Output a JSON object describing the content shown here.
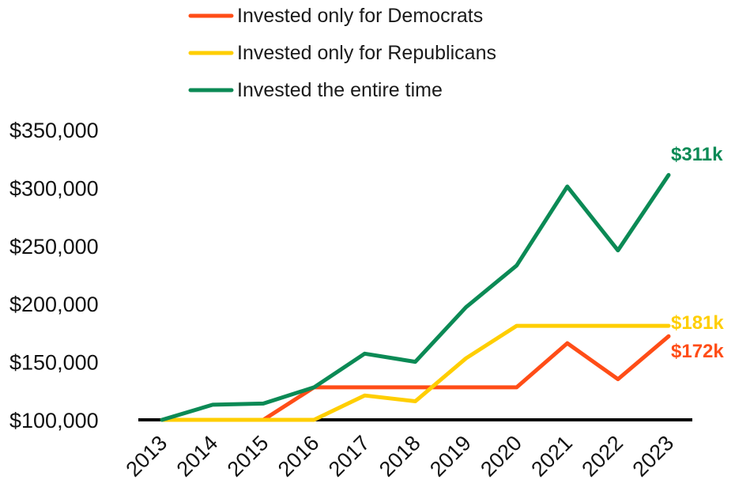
{
  "chart_data": {
    "type": "line",
    "title": "",
    "xlabel": "",
    "ylabel": "",
    "categories": [
      "2013",
      "2014",
      "2015",
      "2016",
      "2017",
      "2018",
      "2019",
      "2020",
      "2021",
      "2022",
      "2023"
    ],
    "ylim": [
      100000,
      350000
    ],
    "yticks": [
      100000,
      150000,
      200000,
      250000,
      300000,
      350000
    ],
    "ytick_labels": [
      "$100,000",
      "$150,000",
      "$200,000",
      "$250,000",
      "$300,000",
      "$350,000"
    ],
    "grid": false,
    "legend_position": "top-center",
    "series": [
      {
        "name": "Invested only for Democrats",
        "color": "#ff4d17",
        "values": [
          100000,
          100000,
          100000,
          128000,
          128000,
          128000,
          128000,
          128000,
          166000,
          135000,
          172000
        ],
        "end_label": "$172k"
      },
      {
        "name": "Invested only for Republicans",
        "color": "#ffce00",
        "values": [
          100000,
          100000,
          100000,
          100000,
          121000,
          116000,
          153000,
          181000,
          181000,
          181000,
          181000
        ],
        "end_label": "$181k"
      },
      {
        "name": "Invested the entire time",
        "color": "#0b8a55",
        "values": [
          100000,
          113000,
          114000,
          128000,
          157000,
          150000,
          197000,
          233000,
          301000,
          246000,
          311000
        ],
        "end_label": "$311k"
      }
    ]
  }
}
